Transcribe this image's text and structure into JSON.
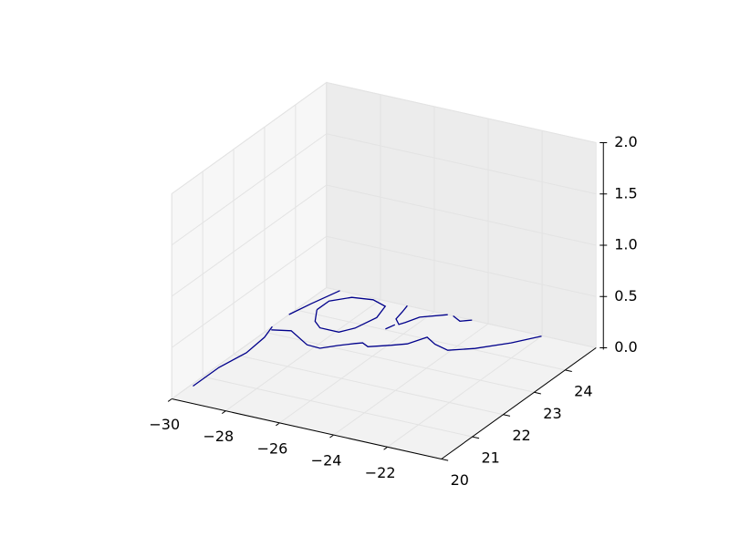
{
  "chart_data": {
    "type": "contour3d",
    "color": "#00008b",
    "xlim": [
      -30,
      -20
    ],
    "ylim": [
      20,
      25
    ],
    "zlim": [
      0,
      2
    ],
    "xticks": [
      {
        "value": -30,
        "label": "−30"
      },
      {
        "value": -28,
        "label": "−28"
      },
      {
        "value": -26,
        "label": "−26"
      },
      {
        "value": -24,
        "label": "−24"
      },
      {
        "value": -22,
        "label": "−22"
      }
    ],
    "yticks": [
      20,
      21,
      22,
      23,
      24
    ],
    "zticks": [
      {
        "value": 0,
        "label": "0.0"
      },
      0.5,
      {
        "value": 1,
        "label": "1.0"
      },
      1.5,
      {
        "value": 2,
        "label": "2.0"
      }
    ],
    "grid": true,
    "x": [
      -29.9,
      -29.9,
      -29.7,
      -29.8,
      -30.0,
      null,
      -30.0,
      -29.8,
      -29.5,
      null,
      -29.4,
      -29.4,
      -28.9,
      -28.2,
      -27.6,
      -27.4,
      -27.6,
      -27.9,
      -28.6,
      -29.0,
      -29.4,
      null,
      -29.9,
      -29.3,
      -28.3,
      -27.8,
      -27.4,
      -27.0,
      -26.8,
      -26.5,
      -25.9,
      -25.5,
      -25.2,
      -24.7,
      -24.1,
      -23.4,
      -22.6,
      -22.0,
      null,
      -26.7,
      -26.6,
      null,
      -27.0,
      -26.9,
      -26.8,
      -26.5,
      -26.4,
      -26.2,
      -25.5,
      null,
      -25.3,
      -24.9,
      -24.6
    ],
    "y": [
      20.6,
      21.44,
      22.15,
      22.82,
      23.25,
      null,
      23.79,
      24.33,
      25.0,
      null,
      24.17,
      24.56,
      24.86,
      24.94,
      24.81,
      24.36,
      23.83,
      23.57,
      23.57,
      23.76,
      24.17,
      null,
      23.13,
      23.25,
      22.89,
      22.87,
      23.1,
      23.3,
      23.38,
      23.29,
      23.52,
      23.69,
      24.07,
      23.89,
      23.78,
      24.05,
      24.52,
      24.98,
      null,
      24.03,
      24.25,
      null,
      25.0,
      24.75,
      24.46,
      24.29,
      24.41,
      24.7,
      25.0,
      null,
      25.0,
      24.87,
      25.0
    ]
  }
}
